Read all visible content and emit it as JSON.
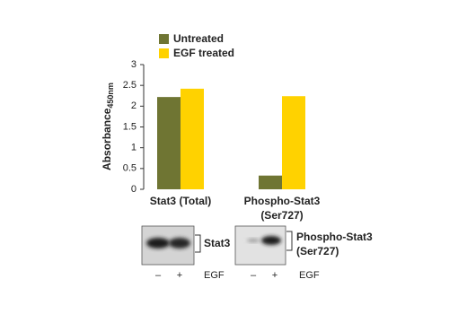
{
  "chart_data": {
    "type": "bar",
    "y_label": "Absorbance",
    "y_label_subscript": "450nm",
    "categories": [
      "Stat3 (Total)",
      "Phospho-Stat3\n(Ser727)"
    ],
    "series": [
      {
        "name": "Untreated",
        "color": "#6f7533",
        "values": [
          2.22,
          0.33
        ]
      },
      {
        "name": "EGF treated",
        "color": "#ffd200",
        "values": [
          2.42,
          2.24
        ]
      }
    ],
    "ylim": [
      0,
      3
    ],
    "yticks": [
      0,
      0.5,
      1,
      1.5,
      2,
      2.5,
      3
    ]
  },
  "blots": [
    {
      "label": "Stat3",
      "lanes": [
        "–",
        "+"
      ],
      "treatment": "EGF"
    },
    {
      "label": "Phospho-Stat3\n(Ser727)",
      "lanes": [
        "–",
        "+"
      ],
      "treatment": "EGF"
    }
  ]
}
